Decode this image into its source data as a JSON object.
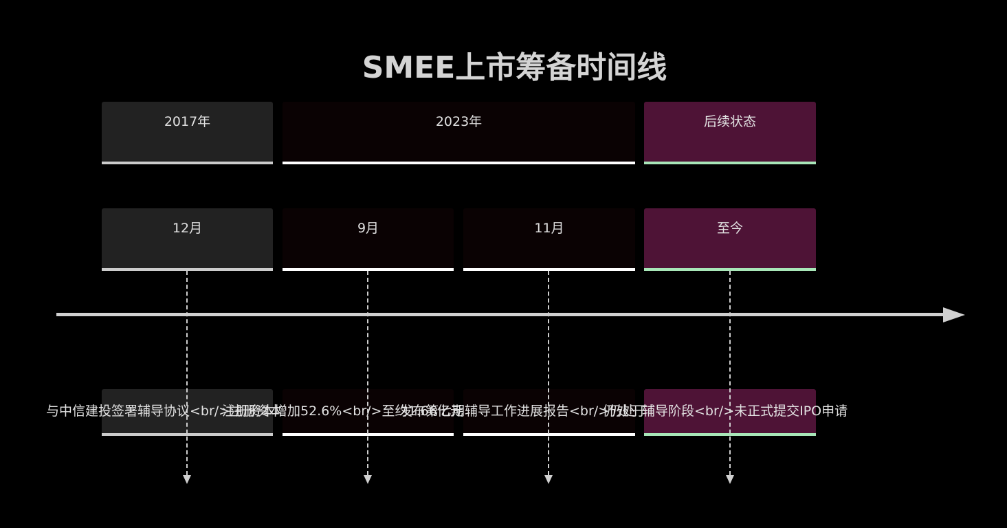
{
  "title": "SMEE上市筹备时间线",
  "years": [
    {
      "label": "2017年",
      "fill": "#222222",
      "accent": "#cccccc"
    },
    {
      "label": "2023年",
      "fill": "#0a0203",
      "accent": "#ffffff"
    },
    {
      "label": "后续状态",
      "fill": "#4e1336",
      "accent": "#a8e6b8"
    }
  ],
  "months": [
    {
      "label": "12月",
      "fill": "#222222",
      "accent": "#cccccc"
    },
    {
      "label": "9月",
      "fill": "#0a0203",
      "accent": "#ffffff"
    },
    {
      "label": "11月",
      "fill": "#0a0203",
      "accent": "#ffffff"
    },
    {
      "label": "至今",
      "fill": "#4e1336",
      "accent": "#a8e6b8"
    }
  ],
  "events": [
    {
      "text": "与中信建投签署辅导协议<br/>注册资本",
      "fill": "#222222",
      "accent": "#cccccc"
    },
    {
      "text": "注册资本增加52.6%<br/>至约1.66亿元",
      "fill": "#0a0203",
      "accent": "#ffffff"
    },
    {
      "text": "发布第七期辅导工作进展报告<br/>仍处于",
      "fill": "#0a0203",
      "accent": "#ffffff"
    },
    {
      "text": "仍处于辅导阶段<br/>未正式提交IPO申请",
      "fill": "#4e1336",
      "accent": "#a8e6b8"
    }
  ],
  "colors": {
    "background": "#000000",
    "axis": "#d0d0d0"
  }
}
